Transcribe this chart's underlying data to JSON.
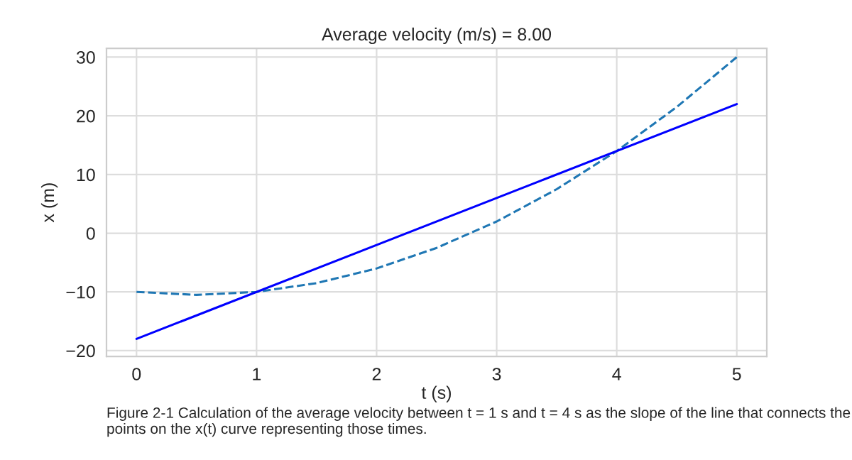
{
  "chart_data": {
    "type": "line",
    "title": "Average velocity (m/s) = 8.00",
    "xlabel": "t (s)",
    "ylabel": "x (m)",
    "series": [
      {
        "color": "#1f77b4",
        "line_style": "dashed",
        "x": [
          0,
          0.5,
          1,
          1.5,
          2,
          2.5,
          3,
          3.5,
          4,
          4.5,
          5
        ],
        "values": [
          -10,
          -10.5,
          -10,
          -8.5,
          -6,
          -2.5,
          2,
          7.5,
          14,
          21.5,
          30
        ]
      },
      {
        "color": "#0000ff",
        "line_style": "solid",
        "x": [
          0,
          5
        ],
        "values": [
          -18,
          22
        ]
      }
    ],
    "xlim": [
      -0.25,
      5.25
    ],
    "ylim": [
      -21,
      31.5
    ],
    "xticks": [
      0,
      1,
      2,
      3,
      4,
      5
    ],
    "yticks": [
      -20,
      -10,
      0,
      10,
      20,
      30
    ],
    "grid": true,
    "marker": "none",
    "annotations": [
      "Figure 2-1 Calculation of the average velocity between t = 1 s and t = 4 s as the slope of the line that connects the points on the x(t) curve representing those times."
    ]
  }
}
